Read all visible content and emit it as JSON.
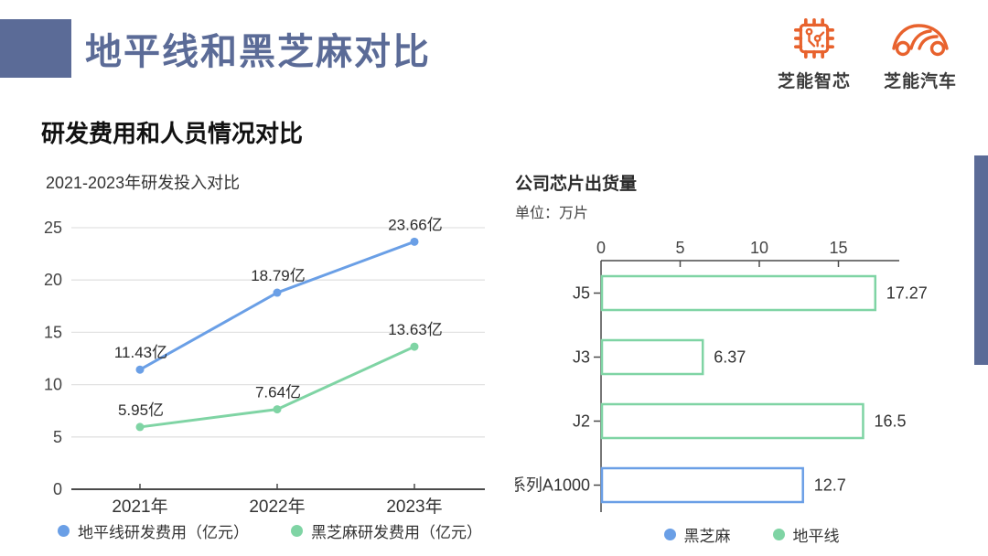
{
  "header": {
    "title": "地平线和黑芝麻对比",
    "logos": [
      {
        "label": "芝能智芯",
        "icon": "chip-icon"
      },
      {
        "label": "芝能汽车",
        "icon": "car-icon"
      }
    ]
  },
  "section": {
    "heading": "研发费用和人员情况对比"
  },
  "colors": {
    "accent": "#5b6b97",
    "logo_orange": "#e8622d",
    "horizon_blue": "#6a9fe6",
    "blacksesame_green": "#7fd4a4",
    "gridline": "#e2e2e2",
    "axis": "#4a4a4a"
  },
  "chart_data": [
    {
      "type": "line",
      "title": "2021-2023年研发投入对比",
      "categories": [
        "2021年",
        "2022年",
        "2023年"
      ],
      "series": [
        {
          "name": "地平线研发费用（亿元）",
          "color": "#6a9fe6",
          "values": [
            11.43,
            18.79,
            23.66
          ],
          "labels": [
            "11.43亿",
            "18.79亿",
            "23.66亿"
          ]
        },
        {
          "name": "黑芝麻研发费用（亿元）",
          "color": "#7fd4a4",
          "values": [
            5.95,
            7.64,
            13.63
          ],
          "labels": [
            "5.95亿",
            "7.64亿",
            "13.63亿"
          ]
        }
      ],
      "yticks": [
        0,
        5,
        10,
        15,
        20,
        25
      ],
      "ylim": [
        0,
        25
      ],
      "grid": true,
      "legend_position": "bottom"
    },
    {
      "type": "bar",
      "orientation": "horizontal",
      "title": "公司芯片出货量",
      "subtitle": "单位：万片",
      "categories": [
        "J5",
        "J3",
        "J2",
        "系列A1000"
      ],
      "values": [
        17.27,
        6.37,
        16.5,
        12.7
      ],
      "value_labels": [
        "17.27",
        "6.37",
        "16.5",
        "12.7"
      ],
      "companies": [
        "地平线",
        "地平线",
        "地平线",
        "黑芝麻"
      ],
      "xticks": [
        0,
        5,
        10,
        15
      ],
      "xlim": [
        0,
        18.8
      ],
      "bar_style": "outlined",
      "legend_position": "bottom",
      "legend": [
        {
          "label": "黑芝麻",
          "color": "#6a9fe6"
        },
        {
          "label": "地平线",
          "color": "#7fd4a4"
        }
      ]
    }
  ]
}
